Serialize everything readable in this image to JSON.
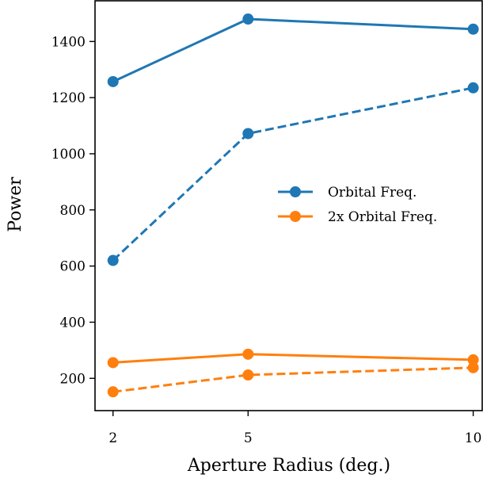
{
  "chart_data": {
    "type": "line",
    "xlabel": "Aperture Radius (deg.)",
    "ylabel": "Power",
    "x": [
      2,
      5,
      10
    ],
    "xticks": [
      2,
      5,
      10
    ],
    "xlim": [
      1.6,
      10.2
    ],
    "yticks": [
      200,
      400,
      600,
      800,
      1000,
      1200,
      1400
    ],
    "ylim": [
      85,
      1545
    ],
    "grid": false,
    "legend": {
      "placement": "center-right",
      "entries": [
        "Orbital Freq.",
        "2x Orbital Freq."
      ]
    },
    "series": [
      {
        "name": "Orbital Freq.",
        "color": "#1f77b4",
        "linestyle": "solid",
        "values": [
          1257,
          1480,
          1444
        ]
      },
      {
        "color": "#1f77b4",
        "linestyle": "dashed",
        "values": [
          620,
          1072,
          1235
        ]
      },
      {
        "name": "2x Orbital Freq.",
        "color": "#ff7f0e",
        "linestyle": "solid",
        "values": [
          256,
          286,
          266
        ]
      },
      {
        "color": "#ff7f0e",
        "linestyle": "dashed",
        "values": [
          152,
          212,
          238
        ]
      }
    ]
  }
}
